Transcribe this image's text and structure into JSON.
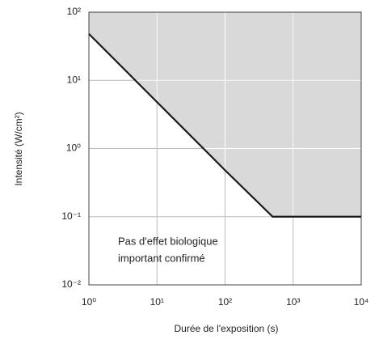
{
  "chart_data": {
    "type": "line",
    "xlabel": "Durée de l'exposition (s)",
    "ylabel": "Intensité (W/cm²)",
    "annotation": [
      "Pas d'effet biologique",
      "important confirmé"
    ],
    "x": [
      1,
      10,
      100,
      500,
      10000
    ],
    "series": [
      {
        "values": [
          48,
          4.8,
          0.48,
          0.1,
          0.1
        ],
        "color": "#1a1a1a"
      }
    ],
    "shade_color": "#d9d9d9",
    "xscale": "log",
    "yscale": "log",
    "xlim": [
      1,
      10000
    ],
    "ylim": [
      0.01,
      100
    ],
    "xticks": [
      {
        "value": 1,
        "label": "10⁰"
      },
      {
        "value": 10,
        "label": "10¹"
      },
      {
        "value": 100,
        "label": "10²"
      },
      {
        "value": 1000,
        "label": "10³"
      },
      {
        "value": 10000,
        "label": "10⁴"
      }
    ],
    "yticks": [
      {
        "value": 0.01,
        "label": "10⁻²"
      },
      {
        "value": 0.1,
        "label": "10⁻¹"
      },
      {
        "value": 1,
        "label": "10⁰"
      },
      {
        "value": 10,
        "label": "10¹"
      },
      {
        "value": 100,
        "label": "10²"
      }
    ],
    "grid": true
  }
}
